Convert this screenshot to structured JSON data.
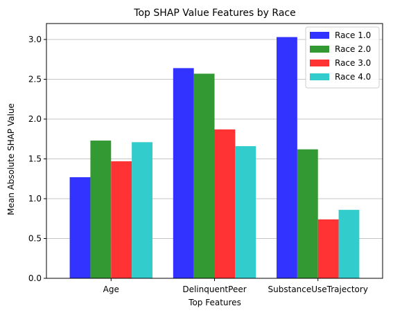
{
  "chart_data": {
    "type": "bar",
    "title": "Top SHAP Value Features by Race",
    "xlabel": "Top Features",
    "ylabel": "Mean Absolute SHAP Value",
    "categories": [
      "Age",
      "DelinquentPeer",
      "SubstanceUseTrajectory"
    ],
    "series": [
      {
        "name": "Race 1.0",
        "color": "#3333ff",
        "values": [
          1.27,
          2.64,
          3.03
        ]
      },
      {
        "name": "Race 2.0",
        "color": "#339933",
        "values": [
          1.73,
          2.57,
          1.62
        ]
      },
      {
        "name": "Race 3.0",
        "color": "#ff3333",
        "values": [
          1.47,
          1.87,
          0.74
        ]
      },
      {
        "name": "Race 4.0",
        "color": "#33cccc",
        "values": [
          1.71,
          1.66,
          0.86
        ]
      }
    ],
    "ylim": [
      0,
      3.2
    ],
    "yticks": [
      "0.0",
      "0.5",
      "1.0",
      "1.5",
      "2.0",
      "2.5",
      "3.0"
    ],
    "grid": "horizontal",
    "legend_position": "top-right"
  }
}
